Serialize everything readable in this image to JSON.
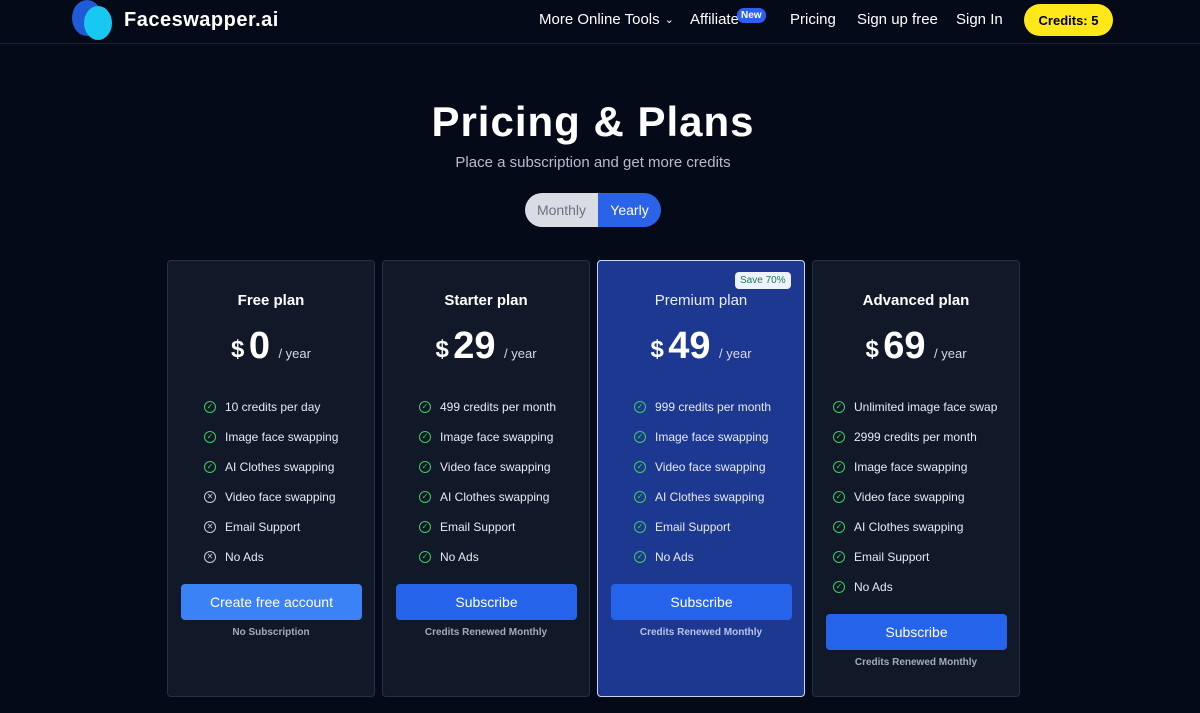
{
  "header": {
    "logo_text": "Faceswapper.ai",
    "nav": {
      "tools": "More Online Tools",
      "affiliate": "Affiliate",
      "affiliate_badge": "New",
      "pricing": "Pricing",
      "signup": "Sign up free",
      "signin": "Sign In"
    },
    "credits": "Credits: 5"
  },
  "hero": {
    "title": "Pricing & Plans",
    "subtitle": "Place a subscription and get more credits",
    "toggle": {
      "monthly": "Monthly",
      "yearly": "Yearly",
      "selected": "Yearly"
    }
  },
  "colors": {
    "background": "#050a18",
    "accent": "#2563eb",
    "credits_badge": "#ffe81a",
    "check": "#3ecb5e"
  },
  "plans": [
    {
      "name": "Free plan",
      "currency": "$",
      "amount": "0",
      "period": "/ year",
      "features": [
        {
          "text": "10 credits per day",
          "included": true
        },
        {
          "text": "Image face swapping",
          "included": true
        },
        {
          "text": "AI Clothes swapping",
          "included": true
        },
        {
          "text": "Video face swapping",
          "included": false
        },
        {
          "text": "Email Support",
          "included": false
        },
        {
          "text": "No Ads",
          "included": false
        }
      ],
      "button": "Create free account",
      "note": "No Subscription"
    },
    {
      "name": "Starter plan",
      "currency": "$",
      "amount": "29",
      "period": "/ year",
      "features": [
        {
          "text": "499 credits per month",
          "included": true
        },
        {
          "text": "Image face swapping",
          "included": true
        },
        {
          "text": "Video face swapping",
          "included": true
        },
        {
          "text": "AI Clothes swapping",
          "included": true
        },
        {
          "text": "Email Support",
          "included": true
        },
        {
          "text": "No Ads",
          "included": true
        }
      ],
      "button": "Subscribe",
      "note": "Credits Renewed Monthly"
    },
    {
      "name": "Premium plan",
      "badge": "Save 70%",
      "currency": "$",
      "amount": "49",
      "period": "/ year",
      "features": [
        {
          "text": "999 credits per month",
          "included": true
        },
        {
          "text": "Image face swapping",
          "included": true
        },
        {
          "text": "Video face swapping",
          "included": true
        },
        {
          "text": "AI Clothes swapping",
          "included": true
        },
        {
          "text": "Email Support",
          "included": true
        },
        {
          "text": "No Ads",
          "included": true
        }
      ],
      "button": "Subscribe",
      "note": "Credits Renewed Monthly"
    },
    {
      "name": "Advanced plan",
      "currency": "$",
      "amount": "69",
      "period": "/ year",
      "features": [
        {
          "text": "Unlimited image face swap",
          "included": true
        },
        {
          "text": "2999 credits per month",
          "included": true
        },
        {
          "text": "Image face swapping",
          "included": true
        },
        {
          "text": "Video face swapping",
          "included": true
        },
        {
          "text": "AI Clothes swapping",
          "included": true
        },
        {
          "text": "Email Support",
          "included": true
        },
        {
          "text": "No Ads",
          "included": true
        }
      ],
      "button": "Subscribe",
      "note": "Credits Renewed Monthly"
    }
  ]
}
